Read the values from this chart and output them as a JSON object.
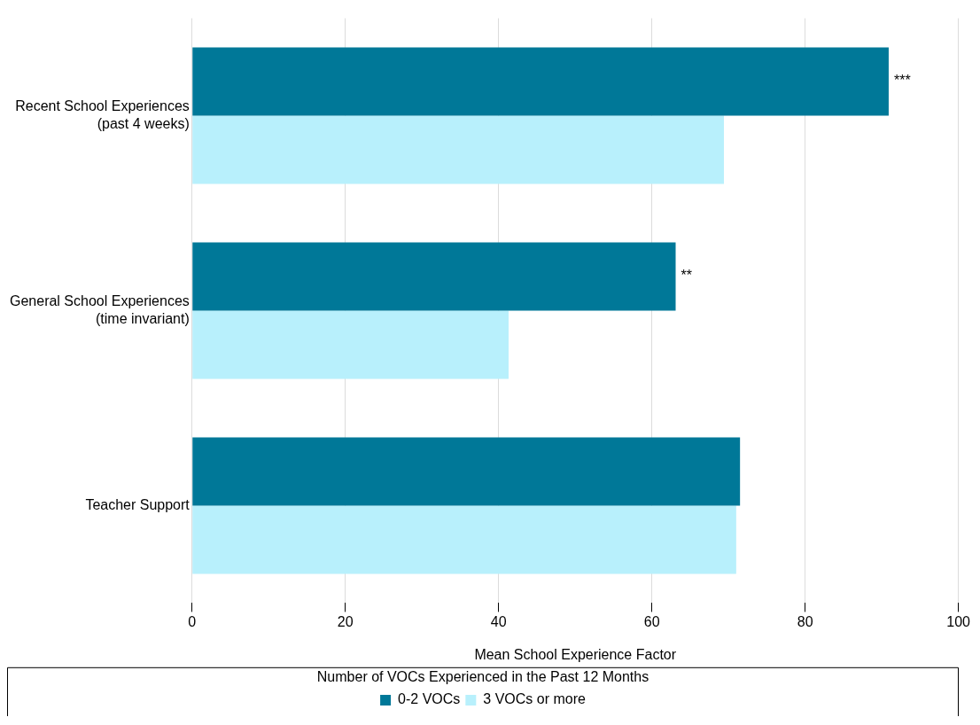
{
  "chart_data": {
    "type": "bar",
    "orientation": "horizontal",
    "xlabel": "Mean School Experience Factor",
    "legend_title": "Number of VOCs Experienced in the Past 12 Months",
    "categories": [
      "Recent School Experiences (past 4 weeks)",
      "General School Experiences (time invariant)",
      "Teacher Support"
    ],
    "series": [
      {
        "name": "0-2 VOCs",
        "color": "#007898",
        "values": [
          90.9,
          63.1,
          71.5
        ]
      },
      {
        "name": "3 VOCs or more",
        "color": "#b8f0fc",
        "values": [
          69.4,
          41.3,
          71.0
        ]
      }
    ],
    "xlim": [
      0,
      100
    ],
    "xticks": [
      0,
      20,
      40,
      60,
      80,
      100
    ],
    "grid": "x",
    "legend": "bottom",
    "annotations": [
      {
        "text": "***",
        "x": 90.9,
        "y": "Recent School Experiences (past 4 weeks)"
      },
      {
        "text": "**",
        "x": 63.1,
        "y": "General School Experiences (time invariant)"
      }
    ]
  }
}
